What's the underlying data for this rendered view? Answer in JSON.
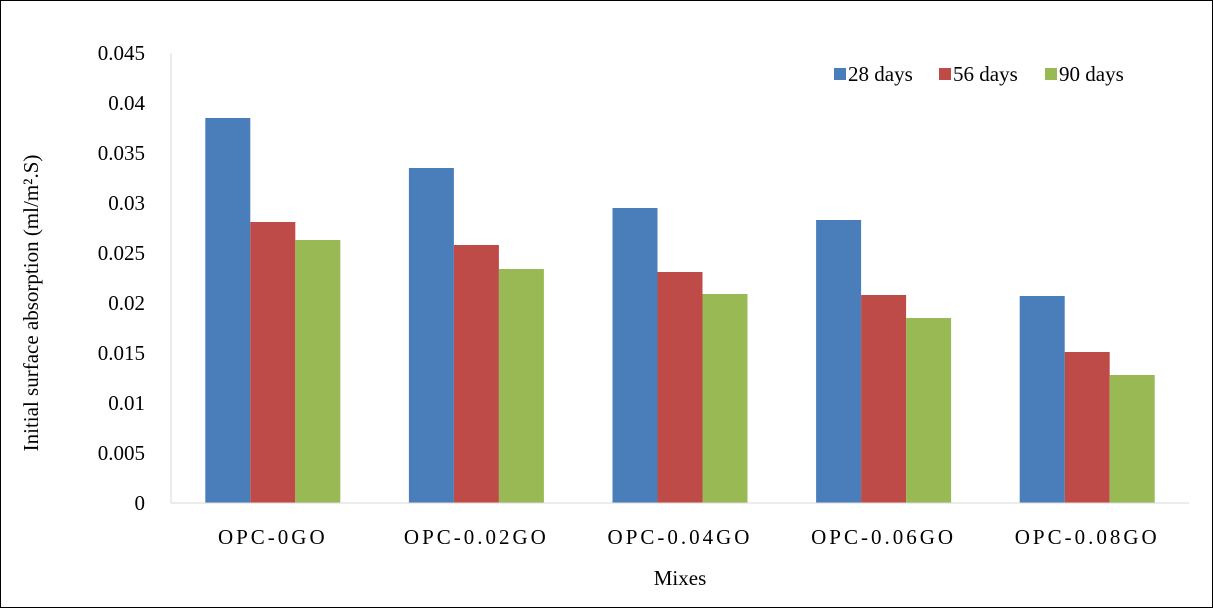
{
  "chart_data": {
    "type": "bar",
    "title": "",
    "xlabel": "Mixes",
    "ylabel": "Initial surface absorption (ml/m².S)",
    "categories": [
      "OPC-0GO",
      "OPC-0.02GO",
      "OPC-0.04GO",
      "OPC-0.06GO",
      "OPC-0.08GO"
    ],
    "series": [
      {
        "name": "28 days",
        "color": "#4A7EBB",
        "values": [
          0.0385,
          0.0335,
          0.0295,
          0.0283,
          0.0207
        ]
      },
      {
        "name": "56 days",
        "color": "#BE4B48",
        "values": [
          0.0281,
          0.0258,
          0.0231,
          0.0208,
          0.0151
        ]
      },
      {
        "name": "90 days",
        "color": "#98B954",
        "values": [
          0.0263,
          0.0234,
          0.0209,
          0.0185,
          0.0128
        ]
      }
    ],
    "ylim": [
      0,
      0.045
    ],
    "yticks": [
      "0",
      "0.005",
      "0.01",
      "0.015",
      "0.02",
      "0.025",
      "0.03",
      "0.035",
      "0.04",
      "0.045"
    ],
    "grid": false,
    "legend_position": "top-right",
    "axis_color": "#D9D9D9"
  }
}
